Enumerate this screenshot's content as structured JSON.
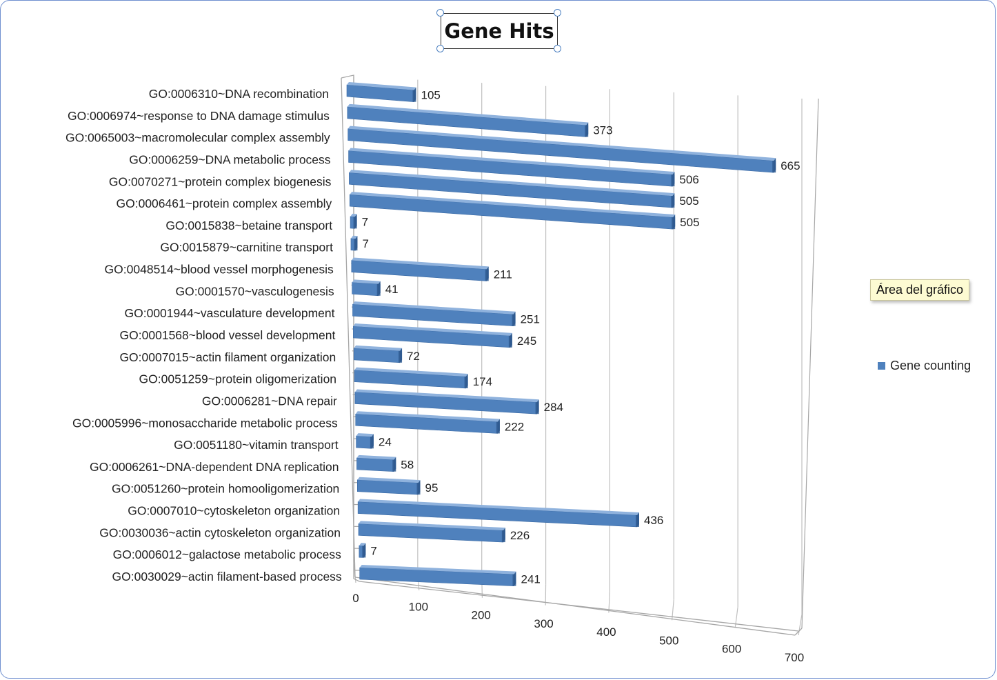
{
  "legend": {
    "label": "Gene counting"
  },
  "tooltip": {
    "text": "Área del gráfico"
  },
  "colors": {
    "bar_front": "#4f81bd",
    "bar_top": "#8fb2dd",
    "bar_side": "#2f5b90",
    "grid": "#bfbfbf"
  },
  "chart_data": {
    "type": "bar",
    "orientation": "horizontal",
    "title": "Gene Hits",
    "xlabel": "",
    "ylabel": "",
    "xlim": [
      0,
      700
    ],
    "grid": true,
    "legend_position": "right",
    "x_ticks": [
      "0",
      "100",
      "200",
      "300",
      "400",
      "500",
      "600",
      "700"
    ],
    "categories": [
      "GO:0006310~DNA recombination",
      "GO:0006974~response to DNA damage stimulus",
      "GO:0065003~macromolecular complex assembly",
      "GO:0006259~DNA metabolic process",
      "GO:0070271~protein complex biogenesis",
      "GO:0006461~protein complex assembly",
      "GO:0015838~betaine transport",
      "GO:0015879~carnitine transport",
      "GO:0048514~blood vessel morphogenesis",
      "GO:0001570~vasculogenesis",
      "GO:0001944~vasculature development",
      "GO:0001568~blood vessel development",
      "GO:0007015~actin filament organization",
      "GO:0051259~protein oligomerization",
      "GO:0006281~DNA repair",
      "GO:0005996~monosaccharide metabolic process",
      "GO:0051180~vitamin transport",
      "GO:0006261~DNA-dependent DNA replication",
      "GO:0051260~protein homooligomerization",
      "GO:0007010~cytoskeleton organization",
      "GO:0030036~actin cytoskeleton organization",
      "GO:0006012~galactose metabolic process",
      "GO:0030029~actin filament-based process"
    ],
    "series": [
      {
        "name": "Gene counting",
        "values": [
          105,
          373,
          665,
          506,
          505,
          505,
          7,
          7,
          211,
          41,
          251,
          245,
          72,
          174,
          284,
          222,
          24,
          58,
          95,
          436,
          226,
          7,
          241
        ],
        "labels": [
          "105",
          "373",
          "665",
          "506",
          "505",
          "505",
          "7",
          "7",
          "211",
          "41",
          "251",
          "245",
          "72",
          "174",
          "284",
          "222",
          "24",
          "58",
          "95",
          "436",
          "226",
          "7",
          "241"
        ]
      }
    ]
  }
}
